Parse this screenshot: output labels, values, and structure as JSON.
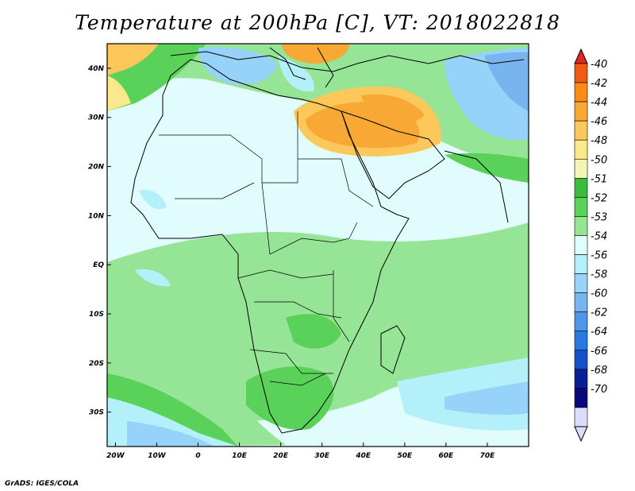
{
  "title": "Temperature at 200hPa [C], VT: 2018022818",
  "footer": "GrADS: IGES/COLA",
  "map": {
    "lon_range": [
      -22,
      80
    ],
    "lat_range": [
      -37,
      45
    ],
    "lon_ticks": [
      {
        "value": -20,
        "label": "20W"
      },
      {
        "value": -10,
        "label": "10W"
      },
      {
        "value": 0,
        "label": "0"
      },
      {
        "value": 10,
        "label": "10E"
      },
      {
        "value": 20,
        "label": "20E"
      },
      {
        "value": 30,
        "label": "30E"
      },
      {
        "value": 40,
        "label": "40E"
      },
      {
        "value": 50,
        "label": "50E"
      },
      {
        "value": 60,
        "label": "60E"
      },
      {
        "value": 70,
        "label": "70E"
      }
    ],
    "lat_ticks": [
      {
        "value": 40,
        "label": "40N"
      },
      {
        "value": 30,
        "label": "30N"
      },
      {
        "value": 20,
        "label": "20N"
      },
      {
        "value": 10,
        "label": "10N"
      },
      {
        "value": 0,
        "label": "EQ"
      },
      {
        "value": -10,
        "label": "10S"
      },
      {
        "value": -20,
        "label": "20S"
      },
      {
        "value": -30,
        "label": "30S"
      }
    ]
  },
  "colorbar": {
    "labels": [
      "-40",
      "-42",
      "-44",
      "-46",
      "-48",
      "-50",
      "-51",
      "-52",
      "-53",
      "-54",
      "-56",
      "-58",
      "-60",
      "-62",
      "-64",
      "-66",
      "-68",
      "-70"
    ],
    "colors": [
      "#e0281e",
      "#f05a14",
      "#f88c14",
      "#f8a834",
      "#fcc85c",
      "#fce88c",
      "#f4f4b4",
      "#3cbc3c",
      "#5ad25a",
      "#96e496",
      "#e0fcfc",
      "#b4f0fa",
      "#96d2fa",
      "#78b4f0",
      "#5096e6",
      "#2878e1",
      "#1450c8",
      "#0a1e96",
      "#08087a",
      "#dcdcfc"
    ],
    "top_arrow_color": "#e0281e",
    "bottom_arrow_color": "#dcdcfc"
  }
}
